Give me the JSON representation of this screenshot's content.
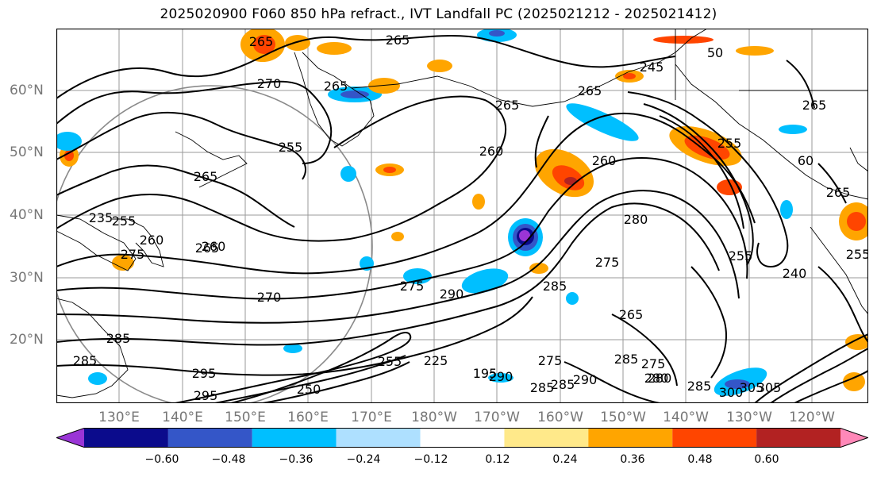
{
  "title": "2025020900 F060 850 hPa refract., IVT Landfall PC (2025021212 - 2025021412)",
  "lat_labels": [
    "60°N",
    "50°N",
    "40°N",
    "30°N",
    "20°N"
  ],
  "lon_labels": [
    "130°E",
    "140°E",
    "150°E",
    "160°E",
    "170°E",
    "180°W",
    "170°W",
    "160°W",
    "150°W",
    "140°W",
    "130°W",
    "120°W"
  ],
  "contour_labels": [
    "265",
    "265",
    "265",
    "245",
    "50",
    "265",
    "265",
    "265",
    "270",
    "265",
    "260",
    "255",
    "260",
    "265",
    "255",
    "60",
    "265",
    "255",
    "260",
    "255",
    "275",
    "280",
    "235",
    "260",
    "275",
    "285",
    "255",
    "240",
    "270",
    "275",
    "285",
    "290",
    "265",
    "285",
    "295",
    "255",
    "250",
    "225",
    "195",
    "290",
    "275",
    "285",
    "290",
    "280",
    "285",
    "280",
    "275",
    "285",
    "300",
    "305",
    "295",
    "285",
    "305"
  ],
  "colorbar": {
    "ticks": [
      "−0.60",
      "−0.48",
      "−0.36",
      "−0.24",
      "−0.12",
      "0.12",
      "0.24",
      "0.36",
      "0.48",
      "0.60"
    ],
    "colors": [
      "#9a35d6",
      "#0b0b8c",
      "#3456c8",
      "#00bfff",
      "#aee0ff",
      "#ffffff",
      "#ffe98a",
      "#ffa500",
      "#ff4500",
      "#b22222",
      "#ff88b8"
    ]
  }
}
